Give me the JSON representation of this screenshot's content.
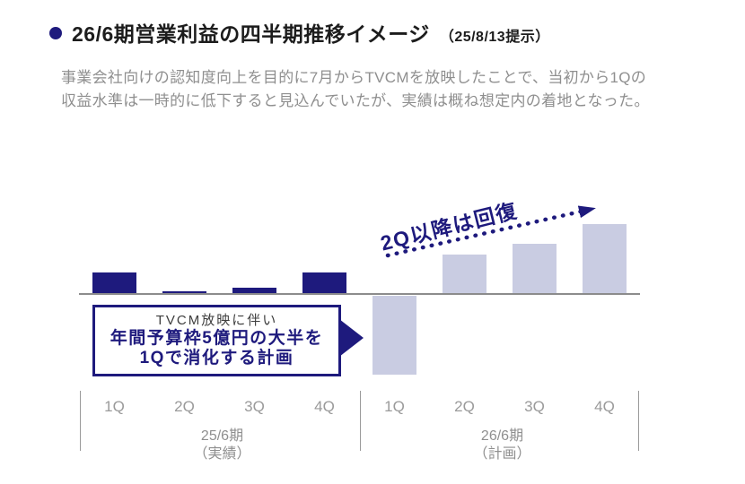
{
  "header": {
    "title": "26/6期営業利益の四半期推移イメージ",
    "title_suffix": "（25/8/13提示）",
    "bullet_color": "#1e1a7d"
  },
  "description": {
    "lines": [
      "事業会社向けの認知度向上を目的に7月からTVCMを放映したことで、当初から1Qの",
      "収益水準は一時的に低下すると見込んでいたが、実績は概ね想定内の着地となった。"
    ]
  },
  "chart_data": {
    "type": "bar",
    "title": "26/6期営業利益の四半期推移イメージ（25/8/13提示）",
    "categories": [
      "1Q",
      "2Q",
      "3Q",
      "4Q",
      "1Q",
      "2Q",
      "3Q",
      "4Q"
    ],
    "series": [
      {
        "name": "25/6期（実績）",
        "color": "#1e1a7d",
        "values": [
          24,
          3,
          7,
          24,
          null,
          null,
          null,
          null
        ]
      },
      {
        "name": "26/6期（計画）",
        "color": "#c9cce2",
        "values": [
          null,
          null,
          null,
          null,
          -88,
          44,
          56,
          78
        ]
      }
    ],
    "xlabel": "",
    "ylabel": "",
    "value_units": "relative bar height (no value axis shown)",
    "baseline": 0,
    "grid": false,
    "legend": false,
    "axis_color": "#8c8c8c"
  },
  "groups": {
    "left": {
      "period": "25/6期",
      "status": "（実績）"
    },
    "right": {
      "period": "26/6期",
      "status": "（計画）"
    }
  },
  "annotation": {
    "text": "2Q以降は回復",
    "color": "#1e1a7d",
    "arrow_style": "dotted"
  },
  "callout": {
    "line1": "TVCM放映に伴い",
    "line2": "年間予算枠5億円の大半を",
    "line3": "1Qで消化する計画",
    "border_color": "#1e1a7d"
  }
}
